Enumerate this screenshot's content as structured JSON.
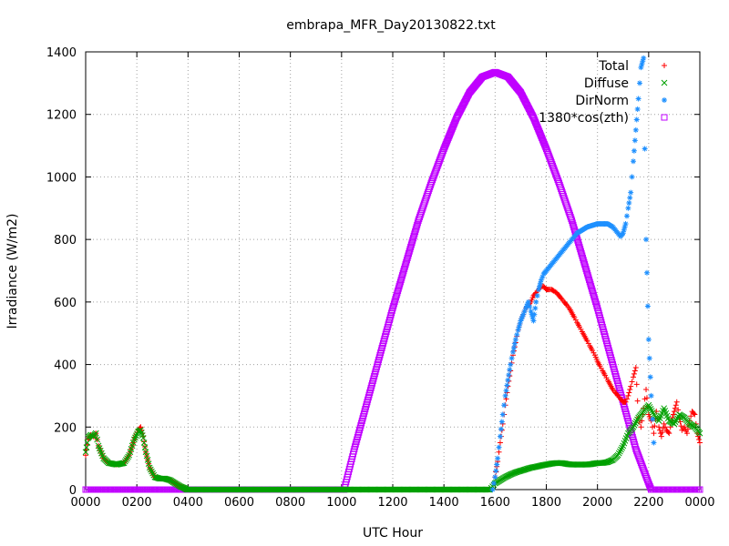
{
  "chart_data": {
    "type": "scatter",
    "title": "embrapa_MFR_Day20130822.txt",
    "xlabel": "UTC Hour",
    "ylabel": "Irradiance (W/m2)",
    "xlim": [
      0,
      24
    ],
    "ylim": [
      0,
      1400
    ],
    "grid": true,
    "legend_placement": "top-right",
    "x_ticks": [
      {
        "value": 0,
        "label": "0000"
      },
      {
        "value": 2,
        "label": "0200"
      },
      {
        "value": 4,
        "label": "0400"
      },
      {
        "value": 6,
        "label": "0600"
      },
      {
        "value": 8,
        "label": "0800"
      },
      {
        "value": 10,
        "label": "1000"
      },
      {
        "value": 12,
        "label": "1200"
      },
      {
        "value": 14,
        "label": "1400"
      },
      {
        "value": 16,
        "label": "1600"
      },
      {
        "value": 18,
        "label": "1800"
      },
      {
        "value": 20,
        "label": "2000"
      },
      {
        "value": 22,
        "label": "2200"
      },
      {
        "value": 24,
        "label": "0000"
      }
    ],
    "y_ticks": [
      0,
      200,
      400,
      600,
      800,
      1000,
      1200,
      1400
    ],
    "series": [
      {
        "name": "Total",
        "marker": "plus",
        "color": "#ff0000",
        "x": [
          0.0,
          0.1,
          0.2,
          0.3,
          0.4,
          0.5,
          0.7,
          0.9,
          1.2,
          1.5,
          1.7,
          1.9,
          2.05,
          2.15,
          2.25,
          2.35,
          2.5,
          2.7,
          2.9,
          3.1,
          3.3,
          3.5,
          3.7,
          3.85,
          3.95,
          15.9,
          16.0,
          16.1,
          16.2,
          16.3,
          16.4,
          16.5,
          16.6,
          16.7,
          16.8,
          16.9,
          17.0,
          17.1,
          17.2,
          17.3,
          17.4,
          17.5,
          17.6,
          17.7,
          17.8,
          17.9,
          18.0,
          18.1,
          18.2,
          18.3,
          18.4,
          18.5,
          18.6,
          18.7,
          18.8,
          18.9,
          19.0,
          19.1,
          19.2,
          19.3,
          19.4,
          19.5,
          19.6,
          19.7,
          19.8,
          19.9,
          20.0,
          20.1,
          20.2,
          20.3,
          20.4,
          20.5,
          20.6,
          20.7,
          20.8,
          20.9,
          21.0,
          21.1,
          21.2,
          21.3,
          21.4,
          21.5,
          21.6,
          21.7,
          21.8,
          21.9,
          22.0,
          22.1,
          22.2,
          22.3,
          22.4,
          22.5,
          22.6,
          22.7,
          22.8,
          22.9,
          23.0,
          23.1,
          23.2,
          23.3,
          23.4,
          23.5,
          23.6,
          23.7,
          23.8,
          23.9,
          24.0
        ],
        "y": [
          110,
          160,
          175,
          170,
          180,
          140,
          100,
          85,
          80,
          85,
          110,
          160,
          190,
          200,
          170,
          120,
          70,
          40,
          35,
          35,
          30,
          20,
          10,
          5,
          0,
          0,
          40,
          90,
          150,
          210,
          270,
          330,
          380,
          430,
          470,
          510,
          540,
          560,
          580,
          590,
          600,
          620,
          630,
          640,
          650,
          650,
          640,
          640,
          640,
          635,
          630,
          620,
          610,
          600,
          590,
          580,
          565,
          550,
          535,
          520,
          505,
          490,
          475,
          460,
          445,
          430,
          410,
          395,
          380,
          365,
          350,
          335,
          320,
          310,
          300,
          290,
          280,
          280,
          300,
          330,
          360,
          390,
          230,
          200,
          260,
          320,
          240,
          220,
          180,
          250,
          200,
          170,
          210,
          190,
          180,
          220,
          250,
          280,
          230,
          190,
          200,
          180,
          220,
          250,
          240,
          180,
          150
        ]
      },
      {
        "name": "Diffuse",
        "marker": "cross",
        "color": "#00a000",
        "x": [
          0.0,
          0.1,
          0.2,
          0.3,
          0.4,
          0.5,
          0.7,
          0.9,
          1.2,
          1.5,
          1.7,
          1.9,
          2.05,
          2.15,
          2.25,
          2.35,
          2.5,
          2.7,
          2.9,
          3.1,
          3.3,
          3.5,
          3.7,
          3.85,
          3.95,
          15.8,
          15.9,
          16.0,
          16.2,
          16.4,
          16.6,
          16.8,
          17.0,
          17.2,
          17.4,
          17.6,
          17.8,
          18.0,
          18.2,
          18.4,
          18.6,
          18.8,
          19.0,
          19.2,
          19.4,
          19.6,
          19.8,
          20.0,
          20.2,
          20.4,
          20.6,
          20.8,
          21.0,
          21.2,
          21.4,
          21.6,
          21.8,
          22.0,
          22.2,
          22.4,
          22.6,
          22.8,
          23.0,
          23.2,
          23.4,
          23.6,
          23.8,
          24.0
        ],
        "y": [
          120,
          165,
          175,
          170,
          180,
          140,
          100,
          85,
          80,
          85,
          110,
          160,
          185,
          190,
          165,
          120,
          70,
          40,
          35,
          35,
          30,
          20,
          10,
          5,
          0,
          0,
          10,
          20,
          30,
          40,
          48,
          55,
          60,
          65,
          70,
          73,
          77,
          80,
          83,
          85,
          85,
          82,
          80,
          80,
          80,
          80,
          82,
          85,
          85,
          88,
          95,
          110,
          140,
          180,
          200,
          230,
          250,
          270,
          240,
          220,
          260,
          220,
          210,
          240,
          230,
          210,
          200,
          180
        ]
      },
      {
        "name": "DirNorm",
        "marker": "star",
        "color": "#1e90ff",
        "x": [
          15.9,
          16.0,
          16.1,
          16.2,
          16.3,
          16.4,
          16.5,
          16.6,
          16.7,
          16.8,
          16.9,
          17.0,
          17.1,
          17.2,
          17.3,
          17.4,
          17.5,
          17.6,
          17.7,
          17.8,
          17.9,
          18.0,
          18.2,
          18.4,
          18.6,
          18.8,
          19.0,
          19.2,
          19.4,
          19.6,
          19.8,
          20.0,
          20.2,
          20.4,
          20.6,
          20.8,
          20.9,
          21.0,
          21.1,
          21.2,
          21.3,
          21.4,
          21.5,
          21.6,
          21.7,
          21.8,
          21.9,
          22.0,
          22.1,
          22.2
        ],
        "y": [
          0,
          40,
          100,
          170,
          240,
          300,
          350,
          400,
          440,
          480,
          510,
          540,
          560,
          580,
          600,
          570,
          540,
          600,
          640,
          670,
          690,
          700,
          720,
          740,
          760,
          780,
          800,
          820,
          830,
          840,
          845,
          850,
          850,
          850,
          840,
          820,
          810,
          820,
          850,
          900,
          950,
          1050,
          1150,
          1250,
          1350,
          1380,
          800,
          480,
          300,
          150
        ]
      },
      {
        "name": "1380*cos(zth)",
        "marker": "square",
        "color": "#c000ff",
        "sza_formula_peak": 1335,
        "x": [
          10.1,
          10.5,
          11.0,
          11.5,
          12.0,
          12.5,
          13.0,
          13.5,
          14.0,
          14.5,
          15.0,
          15.5,
          16.0,
          16.5,
          17.0,
          17.5,
          18.0,
          18.5,
          19.0,
          19.5,
          20.0,
          20.5,
          21.0,
          21.5,
          22.0,
          22.1
        ],
        "y": [
          0,
          130,
          280,
          430,
          580,
          720,
          860,
          980,
          1090,
          1190,
          1270,
          1320,
          1335,
          1320,
          1270,
          1190,
          1090,
          980,
          860,
          720,
          580,
          430,
          280,
          130,
          20,
          0
        ]
      }
    ]
  }
}
